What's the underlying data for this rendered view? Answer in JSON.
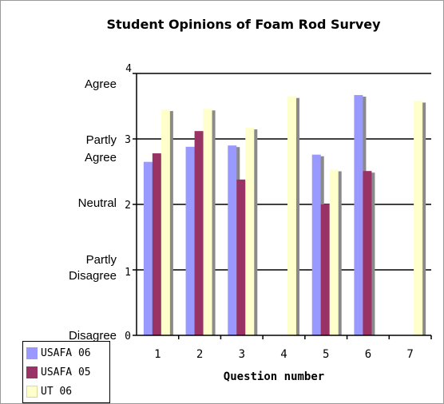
{
  "chart_data": {
    "type": "bar",
    "title": "Student Opinions of Foam Rod Survey",
    "xlabel": "Question number",
    "ylabel": "",
    "ylim": [
      0,
      4
    ],
    "yticks": [
      "0",
      "1",
      "2",
      "3",
      "4"
    ],
    "opinion_labels": [
      {
        "lines": [
          "Disagree"
        ],
        "value": 0
      },
      {
        "lines": [
          "Partly",
          "Disagree"
        ],
        "value": 1
      },
      {
        "lines": [
          "Neutral"
        ],
        "value": 2
      },
      {
        "lines": [
          "Partly",
          "Agree"
        ],
        "value": 3
      },
      {
        "lines": [
          "Agree"
        ],
        "value": 4
      }
    ],
    "categories": [
      "1",
      "2",
      "3",
      "4",
      "5",
      "6",
      "7"
    ],
    "grid": true,
    "legend_position": "bottom-left",
    "series": [
      {
        "name": "USAFA 06",
        "color": "#9999ff",
        "values": [
          2.65,
          2.88,
          2.9,
          null,
          2.76,
          3.67,
          null
        ]
      },
      {
        "name": "USAFA 05",
        "color": "#993366",
        "values": [
          2.78,
          3.12,
          2.38,
          null,
          2.0,
          2.51,
          null
        ]
      },
      {
        "name": "UT 06",
        "color": "#ffffcc",
        "values": [
          3.45,
          3.46,
          3.17,
          3.65,
          2.53,
          null,
          3.58
        ]
      }
    ]
  }
}
